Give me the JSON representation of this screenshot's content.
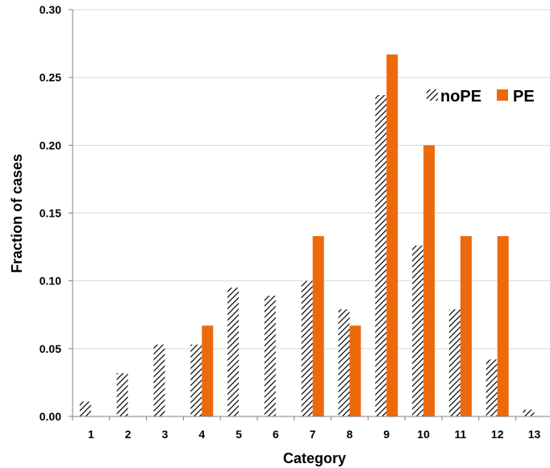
{
  "chart_data": {
    "type": "bar",
    "title": "",
    "xlabel": "Category",
    "ylabel": "Fraction of cases",
    "categories": [
      "1",
      "2",
      "3",
      "4",
      "5",
      "6",
      "7",
      "8",
      "9",
      "10",
      "11",
      "12",
      "13"
    ],
    "ylim": [
      0,
      0.3
    ],
    "yticks": [
      "0.00",
      "0.05",
      "0.10",
      "0.15",
      "0.20",
      "0.25",
      "0.30"
    ],
    "grid": true,
    "legend_position": "top-right",
    "series": [
      {
        "name": "noPE",
        "fill": "hatched",
        "color": "#000000",
        "values": [
          0.011,
          0.032,
          0.053,
          0.053,
          0.095,
          0.089,
          0.1,
          0.079,
          0.237,
          0.126,
          0.079,
          0.042,
          0.005
        ]
      },
      {
        "name": "PE",
        "fill": "solid",
        "color": "#ED6A0C",
        "values": [
          0,
          0,
          0,
          0.067,
          0,
          0,
          0.133,
          0.067,
          0.267,
          0.2,
          0.133,
          0.133,
          0
        ]
      }
    ]
  }
}
